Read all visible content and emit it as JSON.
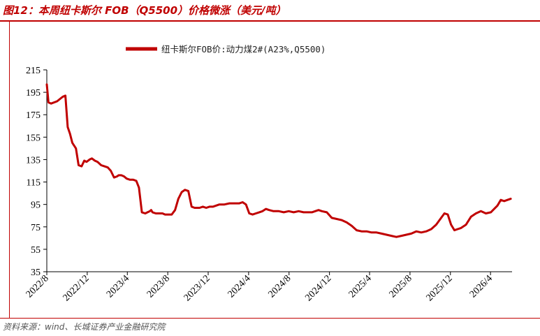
{
  "figure_title": "图12：本周纽卡斯尔 FOB（Q5500）价格微涨（美元/吨）",
  "source": "资料来源：wind、长城证券产业金融研究院",
  "colors": {
    "accent": "#c00000",
    "series": "#c00000"
  },
  "chart_data": {
    "type": "line",
    "title": "",
    "xlabel": "",
    "ylabel": "",
    "ylim": [
      35,
      215
    ],
    "yticks": [
      35,
      55,
      75,
      95,
      115,
      135,
      155,
      175,
      195,
      215
    ],
    "x_range": [
      "2022-08-01",
      "2026-06-05"
    ],
    "xtick_labels": [
      "2022/8",
      "2022/12",
      "2023/4",
      "2023/8",
      "2023/12",
      "2024/4",
      "2024/8",
      "2024/12",
      "2025/4",
      "2025/8",
      "2025/12",
      "2026/4"
    ],
    "xtick_dates": [
      "2022-08-01",
      "2022-12-01",
      "2023-04-01",
      "2023-08-01",
      "2023-12-01",
      "2024-04-01",
      "2024-08-01",
      "2024-12-01",
      "2025-04-01",
      "2025-08-01",
      "2025-12-01",
      "2026-04-01"
    ],
    "legend_position": "top-center",
    "grid": false,
    "series": [
      {
        "name": "纽卡斯尔FOB价:动力煤2#(A23%,Q5500)",
        "x": [
          "2022-08-01",
          "2022-08-06",
          "2022-08-14",
          "2022-09-01",
          "2022-09-18",
          "2022-09-26",
          "2022-10-03",
          "2022-10-10",
          "2022-10-17",
          "2022-10-28",
          "2022-11-05",
          "2022-11-14",
          "2022-11-22",
          "2022-11-29",
          "2022-12-08",
          "2022-12-15",
          "2022-12-24",
          "2023-01-01",
          "2023-01-12",
          "2023-01-22",
          "2023-02-01",
          "2023-02-10",
          "2023-02-20",
          "2023-03-01",
          "2023-03-06",
          "2023-03-14",
          "2023-03-22",
          "2023-03-30",
          "2023-04-09",
          "2023-04-19",
          "2023-04-28",
          "2023-05-06",
          "2023-05-15",
          "2023-05-25",
          "2023-06-01",
          "2023-06-08",
          "2023-06-12",
          "2023-06-16",
          "2023-06-26",
          "2023-07-06",
          "2023-07-16",
          "2023-07-24",
          "2023-08-03",
          "2023-08-13",
          "2023-08-23",
          "2023-09-02",
          "2023-09-12",
          "2023-09-22",
          "2023-10-02",
          "2023-10-12",
          "2023-10-21",
          "2023-10-26",
          "2023-10-31",
          "2023-11-05",
          "2023-11-15",
          "2023-11-25",
          "2023-12-05",
          "2023-12-15",
          "2023-12-25",
          "2024-01-04",
          "2024-01-19",
          "2024-02-03",
          "2024-02-18",
          "2024-03-04",
          "2024-03-14",
          "2024-03-24",
          "2024-04-03",
          "2024-04-13",
          "2024-04-23",
          "2024-05-03",
          "2024-05-13",
          "2024-05-23",
          "2024-06-02",
          "2024-06-15",
          "2024-07-01",
          "2024-07-16",
          "2024-07-31",
          "2024-08-15",
          "2024-08-30",
          "2024-09-14",
          "2024-09-29",
          "2024-10-09",
          "2024-10-19",
          "2024-10-29",
          "2024-11-08",
          "2024-11-23",
          "2024-12-08",
          "2024-12-23",
          "2025-01-07",
          "2025-01-22",
          "2025-02-06",
          "2025-02-21",
          "2025-03-08",
          "2025-03-23",
          "2025-04-07",
          "2025-04-22",
          "2025-05-07",
          "2025-05-22",
          "2025-06-06",
          "2025-06-21",
          "2025-07-06",
          "2025-07-21",
          "2025-08-05",
          "2025-08-20",
          "2025-09-04",
          "2025-09-19",
          "2025-10-04",
          "2025-10-19",
          "2025-11-03",
          "2025-11-13",
          "2025-11-23",
          "2025-12-03",
          "2025-12-13",
          "2025-12-23",
          "2026-01-02",
          "2026-01-17",
          "2026-02-01",
          "2026-02-16",
          "2026-03-03",
          "2026-03-18",
          "2026-04-02",
          "2026-04-12",
          "2026-04-22",
          "2026-05-02",
          "2026-05-12",
          "2026-05-22",
          "2026-06-01"
        ],
        "values": [
          202,
          186,
          185,
          187,
          191,
          192,
          164,
          158,
          150,
          145,
          130,
          129,
          134,
          133,
          135,
          136,
          134,
          133,
          130,
          129,
          128,
          125,
          119,
          120,
          121,
          121,
          120,
          118,
          117,
          117,
          116,
          110,
          88,
          87,
          88,
          89,
          90,
          88,
          87,
          87,
          87,
          86,
          86,
          86,
          90,
          100,
          106,
          108,
          107,
          93,
          92,
          92,
          92,
          92,
          93,
          92,
          93,
          93,
          94,
          95,
          95,
          96,
          96,
          96,
          97,
          95,
          87,
          86,
          87,
          88,
          89,
          91,
          90,
          89,
          89,
          88,
          89,
          88,
          89,
          88,
          88,
          88,
          89,
          90,
          89,
          88,
          83,
          82,
          81,
          79,
          76,
          72,
          71,
          71,
          70,
          70,
          69,
          68,
          67,
          66,
          67,
          68,
          69,
          71,
          70,
          71,
          73,
          77,
          83,
          87,
          86,
          77,
          72,
          73,
          74,
          77,
          84,
          87,
          89,
          87,
          88,
          91,
          94,
          99,
          98,
          99,
          100
        ]
      }
    ]
  }
}
